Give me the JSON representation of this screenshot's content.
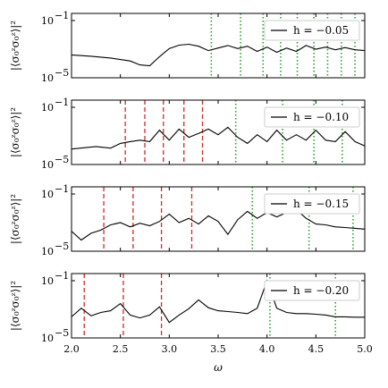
{
  "chart_data": [
    {
      "type": "line",
      "ylabel": "|⟨σ₀ᶻσ₀ᶻ⟩|²",
      "legend": "h = −0.05",
      "x": [
        2.0,
        2.2,
        2.4,
        2.6,
        2.7,
        2.8,
        2.9,
        3.0,
        3.1,
        3.2,
        3.3,
        3.4,
        3.5,
        3.6,
        3.7,
        3.8,
        3.9,
        4.0,
        4.1,
        4.2,
        4.3,
        4.4,
        4.5,
        4.6,
        4.7,
        4.8,
        4.9,
        5.0
      ],
      "y": [
        0.0004,
        0.00032,
        0.00024,
        0.00015,
        8e-05,
        7e-05,
        0.0003,
        0.0011,
        0.0019,
        0.0022,
        0.0016,
        0.0008,
        0.0012,
        0.0018,
        0.0011,
        0.0016,
        0.0007,
        0.0014,
        0.0006,
        0.0012,
        0.0007,
        0.0018,
        0.001,
        0.0014,
        0.0009,
        0.0013,
        0.0009,
        0.0008
      ],
      "red_lines": [],
      "green_lines": [
        3.43,
        3.73,
        3.96,
        4.14,
        4.31,
        4.48,
        4.62,
        4.76,
        4.9
      ],
      "xlim": [
        2.0,
        5.0
      ],
      "ylim_log": [
        -5,
        -0.5
      ]
    },
    {
      "type": "line",
      "ylabel": "|⟨σ₀ᶻσ₀ᶻ⟩|²",
      "legend": "h = −0.10",
      "x": [
        2.0,
        2.25,
        2.4,
        2.5,
        2.6,
        2.7,
        2.8,
        2.9,
        3.0,
        3.1,
        3.2,
        3.3,
        3.4,
        3.5,
        3.6,
        3.7,
        3.8,
        3.9,
        4.0,
        4.1,
        4.2,
        4.3,
        4.4,
        4.5,
        4.6,
        4.7,
        4.8,
        4.9,
        5.0
      ],
      "y": [
        0.00012,
        0.00018,
        0.00014,
        0.0003,
        0.0004,
        0.0005,
        0.0004,
        0.0025,
        0.0005,
        0.003,
        0.0008,
        0.0015,
        0.003,
        0.0012,
        0.004,
        0.0008,
        0.0003,
        0.0012,
        0.0004,
        0.0025,
        0.0005,
        0.0012,
        0.0005,
        0.0025,
        0.0005,
        0.0004,
        0.002,
        0.0004,
        0.0002
      ],
      "red_lines": [
        2.55,
        2.75,
        2.94,
        3.15,
        3.34
      ],
      "green_lines": [
        3.68,
        4.16,
        4.48,
        4.77
      ],
      "xlim": [
        2.0,
        5.0
      ],
      "ylim_log": [
        -5,
        -0.5
      ]
    },
    {
      "type": "line",
      "ylabel": "|⟨σ₀ᶻσ₀ᶻ⟩|²",
      "legend": "h = −0.15",
      "x": [
        2.0,
        2.1,
        2.2,
        2.3,
        2.4,
        2.5,
        2.6,
        2.7,
        2.8,
        2.9,
        3.0,
        3.1,
        3.2,
        3.3,
        3.4,
        3.5,
        3.6,
        3.7,
        3.8,
        3.9,
        4.0,
        4.1,
        4.2,
        4.3,
        4.4,
        4.5,
        4.6,
        4.7,
        4.8,
        4.9,
        5.0
      ],
      "y": [
        0.00025,
        6e-05,
        0.00018,
        0.0003,
        0.0007,
        0.001,
        0.0005,
        0.0009,
        0.0006,
        0.0012,
        0.004,
        0.001,
        0.002,
        0.0008,
        0.003,
        0.0012,
        0.00015,
        0.0016,
        0.006,
        0.002,
        0.005,
        0.0025,
        0.005,
        0.008,
        0.002,
        0.0008,
        0.0007,
        0.0005,
        0.00045,
        0.0004,
        0.00035
      ],
      "red_lines": [
        2.33,
        2.63,
        2.92,
        3.23
      ],
      "green_lines": [
        3.85,
        4.43,
        4.88
      ],
      "xlim": [
        2.0,
        5.0
      ],
      "ylim_log": [
        -5,
        -0.5
      ]
    },
    {
      "type": "line",
      "ylabel": "|⟨σ₀ᶻσ₀ᶻ⟩|²",
      "legend": "h = −0.20",
      "x": [
        2.0,
        2.1,
        2.2,
        2.3,
        2.4,
        2.5,
        2.6,
        2.7,
        2.8,
        2.9,
        3.0,
        3.1,
        3.2,
        3.3,
        3.4,
        3.5,
        3.6,
        3.7,
        3.8,
        3.9,
        4.0,
        4.1,
        4.2,
        4.3,
        4.4,
        4.5,
        4.6,
        4.7,
        4.8,
        4.9,
        5.0
      ],
      "y": [
        0.0003,
        0.0012,
        0.00035,
        0.0006,
        0.0008,
        0.0025,
        0.0004,
        0.00025,
        0.0004,
        0.0015,
        0.00012,
        0.0004,
        0.0011,
        0.0045,
        0.0013,
        0.0008,
        0.0007,
        0.0006,
        0.0005,
        0.0012,
        0.1,
        0.0012,
        0.0006,
        0.0005,
        0.0005,
        0.00045,
        0.0004,
        0.0003,
        0.0003,
        0.00028,
        0.00028
      ],
      "red_lines": [
        2.13,
        2.53,
        2.92
      ],
      "green_lines": [
        4.03,
        4.7
      ],
      "xlim": [
        2.0,
        5.0
      ],
      "ylim_log": [
        -5,
        -0.5
      ]
    }
  ],
  "axis": {
    "xlabel": "ω",
    "xticks": [
      "2.0",
      "2.5",
      "3.0",
      "3.5",
      "4.0",
      "4.5",
      "5.0"
    ],
    "xtick_values": [
      2.0,
      2.5,
      3.0,
      3.5,
      4.0,
      4.5,
      5.0
    ],
    "yticks": [
      "10",
      "10"
    ],
    "ytick_exps": [
      "−1",
      "−5"
    ],
    "ytick_values": [
      -1,
      -5
    ]
  },
  "colors": {
    "line": "#000000",
    "red_dash": "#d62728",
    "green_dot": "#2ca02c"
  }
}
